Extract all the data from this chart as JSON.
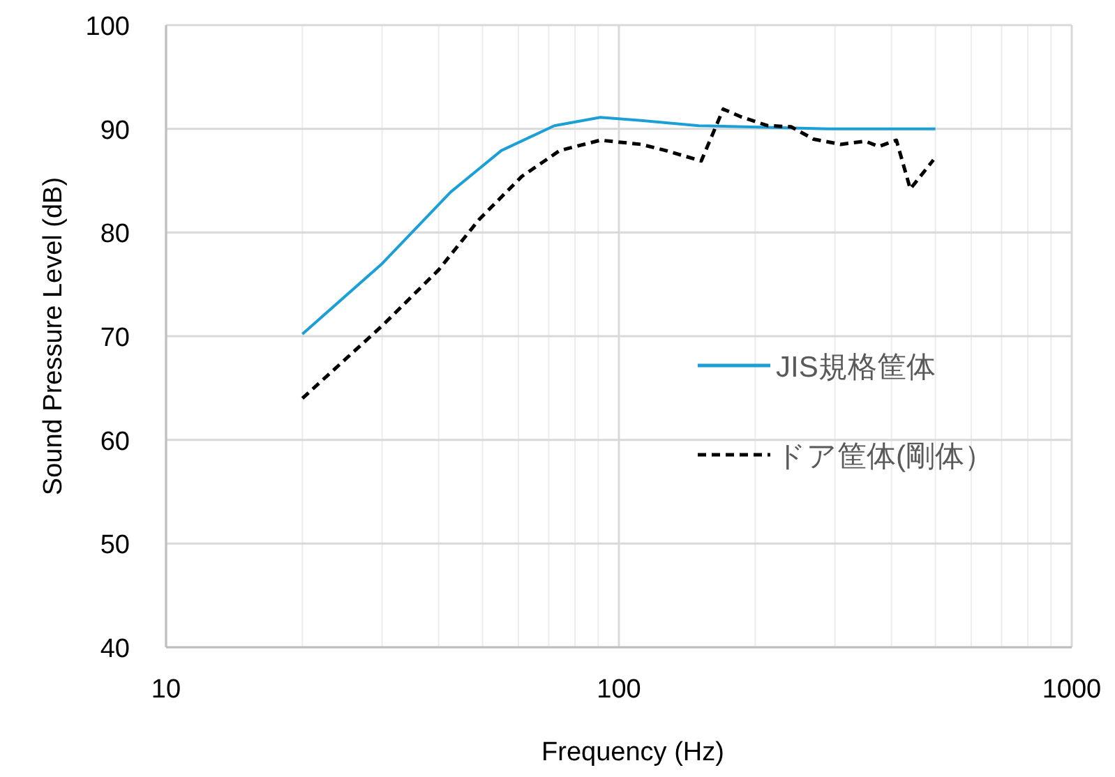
{
  "chart_data": {
    "type": "line",
    "xlabel": "Frequency (Hz)",
    "ylabel": "Sound Pressure Level (dB)",
    "log": "x",
    "xlim": [
      10,
      1000
    ],
    "xticks": [
      10,
      100,
      1000
    ],
    "ylim": [
      40,
      100
    ],
    "yticks": [
      40,
      50,
      60,
      70,
      80,
      90,
      100
    ],
    "grid": true,
    "legend": "right",
    "series": [
      {
        "name": "JIS規格筐体",
        "color": "#1b9fd6",
        "line_style": "solid",
        "x": [
          20,
          30,
          42.5,
          55,
          72,
          91,
          112,
          150,
          290,
          500
        ],
        "values": [
          70.2,
          77.0,
          83.9,
          87.9,
          90.3,
          91.1,
          90.8,
          90.3,
          90.0,
          90.0
        ]
      },
      {
        "name": "ドア筐体(剛体）",
        "color": "#000000",
        "line_style": "dashed",
        "x": [
          20,
          30,
          40,
          49,
          61,
          74,
          91,
          112,
          127,
          152,
          170,
          185,
          213,
          240,
          269,
          309,
          350,
          375,
          410,
          440,
          495
        ],
        "values": [
          64.0,
          71.0,
          76.4,
          81.2,
          85.4,
          87.9,
          88.9,
          88.5,
          87.9,
          86.9,
          91.9,
          91.2,
          90.3,
          90.2,
          89.0,
          88.5,
          88.8,
          88.3,
          88.9,
          84.2,
          87.0
        ]
      }
    ]
  }
}
